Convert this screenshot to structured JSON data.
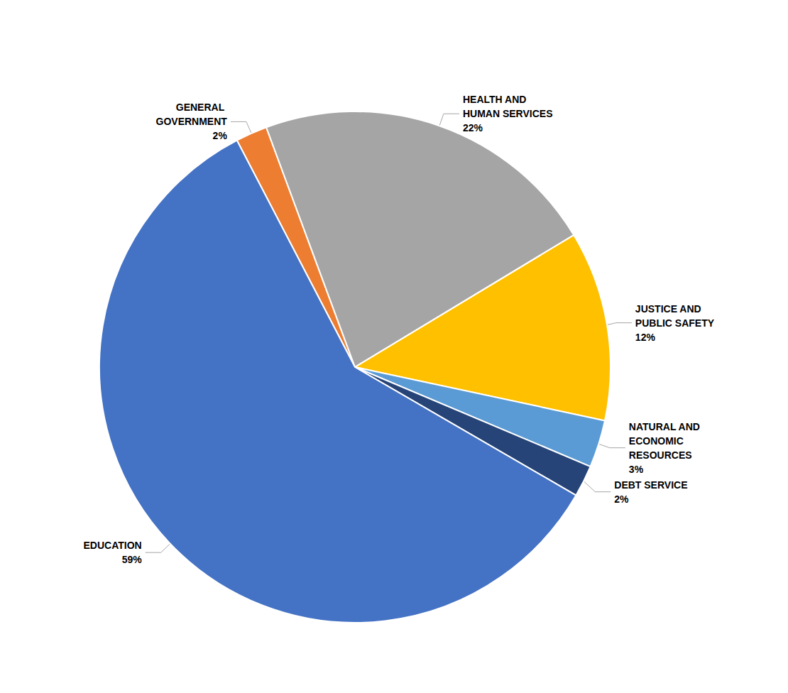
{
  "chart_data": {
    "type": "pie",
    "categories": [
      "GENERAL GOVERNMENT",
      "HEALTH AND HUMAN SERVICES",
      "JUSTICE AND PUBLIC SAFETY",
      "NATURAL AND ECONOMIC RESOURCES",
      "DEBT SERVICE",
      "EDUCATION"
    ],
    "values": [
      2,
      22,
      12,
      3,
      2,
      59
    ],
    "value_labels": [
      "2%",
      "22%",
      "12%",
      "3%",
      "2%",
      "59%"
    ],
    "colors": [
      "#ED7D31",
      "#A5A5A5",
      "#FFC000",
      "#5B9BD5",
      "#264478",
      "#4472C4"
    ],
    "data_labels": true
  }
}
